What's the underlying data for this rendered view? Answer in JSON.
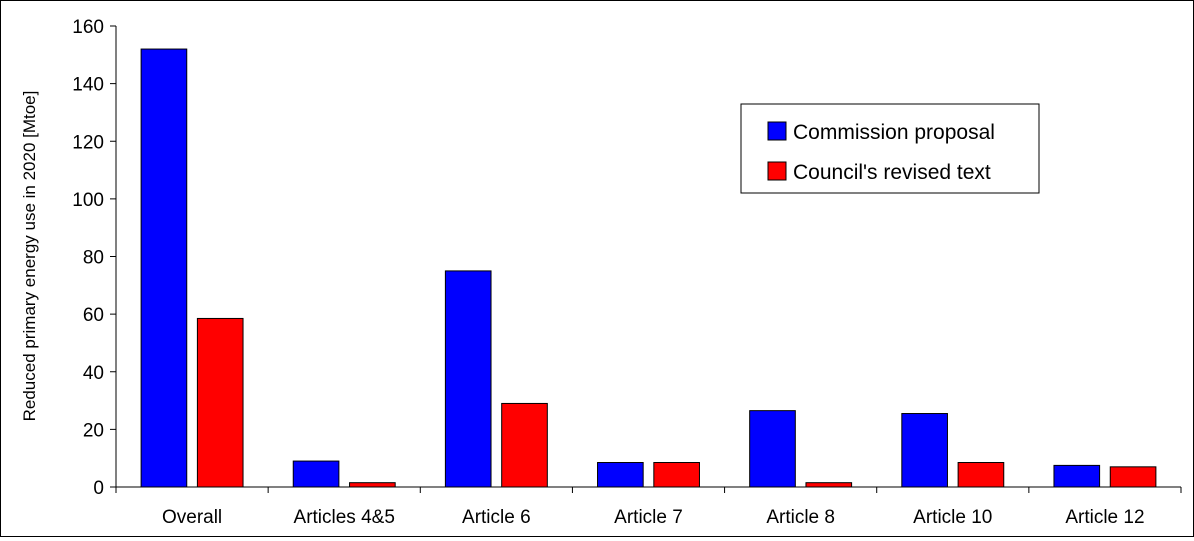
{
  "chart_data": {
    "type": "bar",
    "title": "",
    "xlabel": "",
    "ylabel": "Reduced primary energy use in 2020 [Mtoe]",
    "ylim": [
      0,
      160
    ],
    "yticks": [
      0,
      20,
      40,
      60,
      80,
      100,
      120,
      140,
      160
    ],
    "categories": [
      "Overall",
      "Articles 4&5",
      "Article 6",
      "Article 7",
      "Article 8",
      "Article 10",
      "Article 12"
    ],
    "series": [
      {
        "name": "Commission proposal",
        "color": "#0000FF",
        "values": [
          152,
          9,
          75,
          8.5,
          26.5,
          25.5,
          7.5
        ]
      },
      {
        "name": "Council's revised text",
        "color": "#FF0000",
        "values": [
          58.5,
          1.5,
          29,
          8.5,
          1.5,
          8.5,
          7
        ]
      }
    ],
    "legend_position": "upper-right",
    "grid": false
  }
}
